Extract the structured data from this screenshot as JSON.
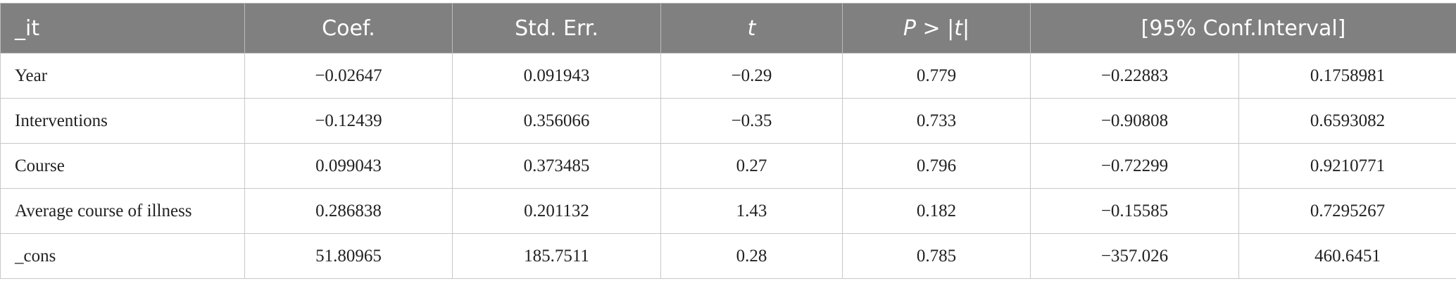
{
  "table": {
    "header": [
      "_it",
      "Coef.",
      "Std. Err.",
      "t",
      "P > |t|",
      "[95% Conf.Interval]"
    ],
    "rows": [
      [
        "Year",
        "−0.02647",
        "0.091943",
        "−0.29",
        "0.779",
        "−0.22883",
        "0.1758981"
      ],
      [
        "Interventions",
        "−0.12439",
        "0.356066",
        "−0.35",
        "0.733",
        "−0.90808",
        "0.6593082"
      ],
      [
        "Course",
        "0.099043",
        "0.373485",
        "0.27",
        "0.796",
        "−0.72299",
        "0.9210771"
      ],
      [
        "Average course of illness",
        "0.286838",
        "0.201132",
        "1.43",
        "0.182",
        "−0.15585",
        "0.7295267"
      ],
      [
        "_cons",
        "51.80965",
        "185.7511",
        "0.28",
        "0.785",
        "−357.026",
        "460.6451"
      ]
    ]
  }
}
